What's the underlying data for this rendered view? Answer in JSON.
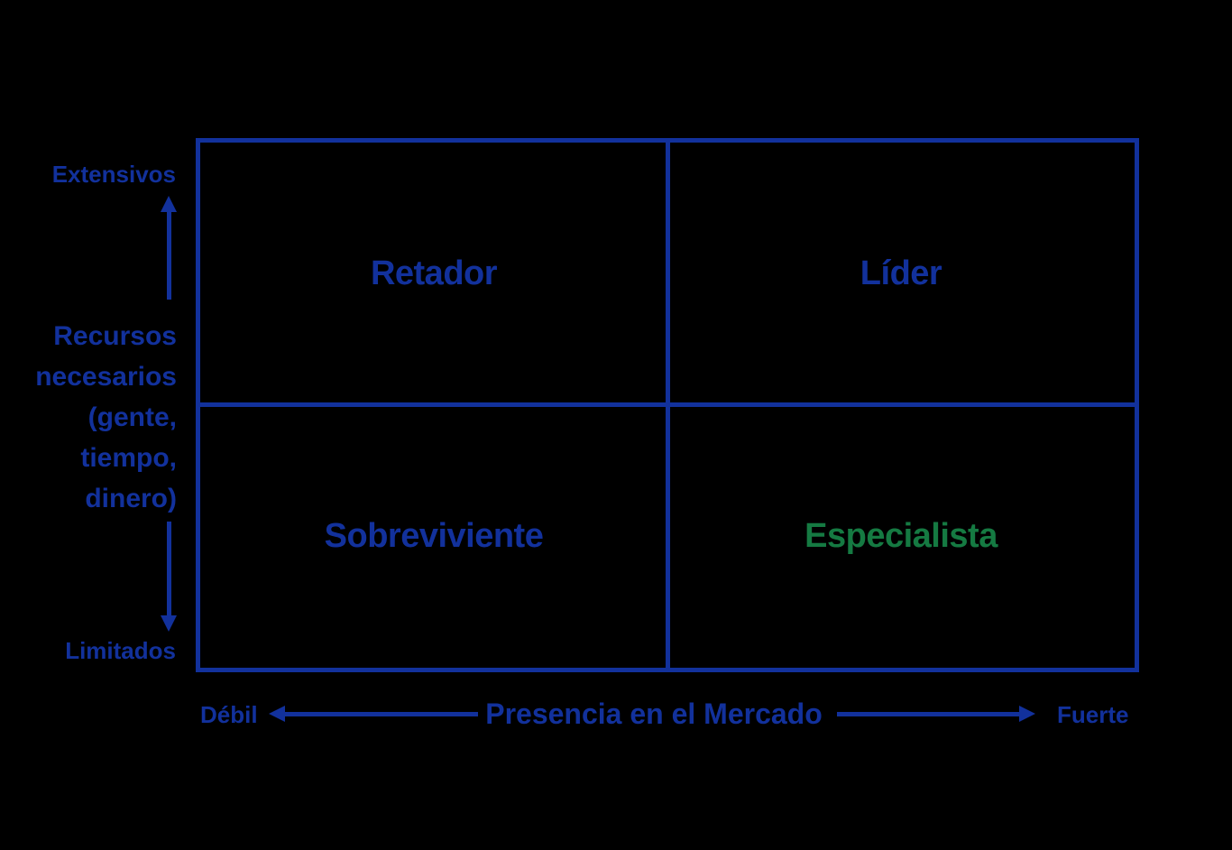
{
  "colors": {
    "background": "#000000",
    "primary": "#12319c",
    "green": "#157a42"
  },
  "matrix": {
    "quadrants": [
      {
        "position": "top-left",
        "label": "Retador",
        "color": "#12319c"
      },
      {
        "position": "top-right",
        "label": "Líder",
        "color": "#12319c"
      },
      {
        "position": "bottom-left",
        "label": "Sobreviviente",
        "color": "#12319c"
      },
      {
        "position": "bottom-right",
        "label": "Especialista",
        "color": "#157a42"
      }
    ]
  },
  "y_axis": {
    "title": "Recursos\nnecesarios\n(gente,\ntiempo,\ndinero)",
    "top_label": "Extensivos",
    "bottom_label": "Limitados"
  },
  "x_axis": {
    "title": "Presencia en el Mercado",
    "left_label": "Débil",
    "right_label": "Fuerte"
  }
}
